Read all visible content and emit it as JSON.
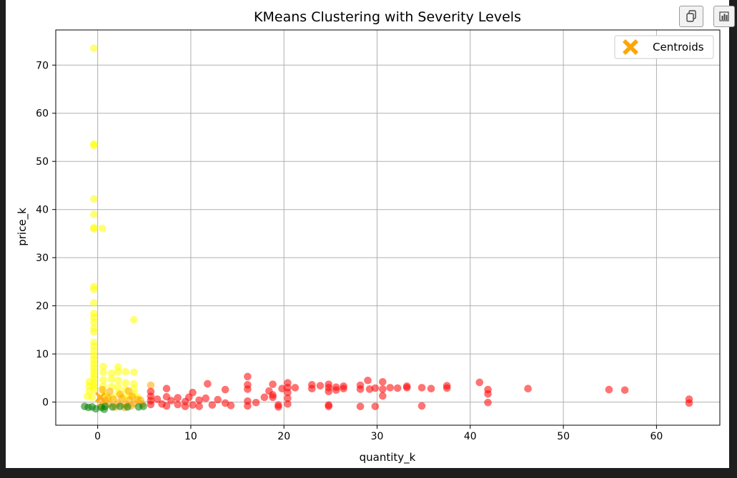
{
  "toolbar": {
    "copy_icon": "copy-icon",
    "chart_icon": "bar-chart-icon"
  },
  "colors": {
    "background": "#1e1e1e",
    "red": "#ff0000",
    "yellow": "#ffff00",
    "orange": "#ffa500",
    "green": "#008000",
    "grid": "#b0b0b0"
  },
  "chart_data": {
    "type": "scatter",
    "title": "KMeans Clustering with Severity Levels",
    "xlabel": "quantity_k",
    "ylabel": "price_k",
    "xlim": [
      -4.5,
      66.8
    ],
    "ylim": [
      -4.8,
      77.3
    ],
    "xticks": [
      0,
      10,
      20,
      30,
      40,
      50,
      60
    ],
    "yticks": [
      0,
      10,
      20,
      30,
      40,
      50,
      60,
      70
    ],
    "grid": true,
    "legend": {
      "placement": "top-right",
      "entries": [
        {
          "label": "Centroids",
          "color": "#ffa500",
          "marker": "X"
        }
      ]
    },
    "series": [
      {
        "color": "#ffff00",
        "points": [
          [
            -0.4,
            73.5
          ],
          [
            -0.4,
            53.6
          ],
          [
            -0.4,
            53.3
          ],
          [
            -0.4,
            42.2
          ],
          [
            -0.4,
            39.0
          ],
          [
            -0.4,
            36.2
          ],
          [
            -0.4,
            36.0
          ],
          [
            0.5,
            36.1
          ],
          [
            3.9,
            17.1
          ],
          [
            -0.4,
            24.0
          ],
          [
            -0.4,
            23.4
          ],
          [
            -0.4,
            20.6
          ],
          [
            -0.4,
            18.4
          ],
          [
            -0.4,
            17.6
          ],
          [
            -0.4,
            16.6
          ],
          [
            -0.4,
            15.4
          ],
          [
            -0.4,
            14.6
          ],
          [
            -0.4,
            12.4
          ],
          [
            -0.4,
            11.6
          ],
          [
            -0.4,
            10.6
          ],
          [
            -0.4,
            9.6
          ],
          [
            -0.4,
            8.8
          ],
          [
            -0.4,
            7.9
          ],
          [
            -0.4,
            7.1
          ],
          [
            -0.4,
            6.3
          ],
          [
            -0.4,
            5.6
          ],
          [
            -0.4,
            4.8
          ],
          [
            -0.4,
            4.0
          ],
          [
            -0.4,
            3.3
          ],
          [
            -0.4,
            2.6
          ],
          [
            -0.9,
            4.2
          ],
          [
            -0.9,
            3.3
          ],
          [
            -0.9,
            2.3
          ],
          [
            -1.1,
            1.2
          ],
          [
            -0.6,
            1.0
          ],
          [
            0.6,
            7.4
          ],
          [
            0.6,
            6.2
          ],
          [
            0.6,
            4.6
          ],
          [
            0.6,
            3.3
          ],
          [
            0.6,
            2.0
          ],
          [
            1.5,
            6.0
          ],
          [
            1.5,
            4.8
          ],
          [
            1.5,
            3.2
          ],
          [
            2.2,
            7.3
          ],
          [
            2.2,
            6.3
          ],
          [
            2.2,
            4.5
          ],
          [
            2.2,
            3.1
          ],
          [
            2.2,
            2.0
          ],
          [
            3.0,
            6.3
          ],
          [
            3.0,
            4.0
          ],
          [
            3.0,
            2.6
          ],
          [
            3.9,
            6.2
          ],
          [
            3.9,
            3.8
          ],
          [
            3.9,
            2.8
          ],
          [
            3.9,
            1.7
          ],
          [
            1.0,
            1.2
          ],
          [
            1.6,
            1.0
          ],
          [
            2.8,
            1.0
          ],
          [
            3.4,
            1.3
          ],
          [
            4.3,
            1.0
          ]
        ]
      },
      {
        "color": "#ffa500",
        "points": [
          [
            0.3,
            0.5
          ],
          [
            0.8,
            0.3
          ],
          [
            1.2,
            -0.4
          ],
          [
            1.7,
            0.6
          ],
          [
            2.2,
            -0.2
          ],
          [
            2.6,
            0.8
          ],
          [
            3.0,
            -0.4
          ],
          [
            3.4,
            0.4
          ],
          [
            3.9,
            -0.3
          ],
          [
            4.3,
            0.5
          ],
          [
            5.7,
            3.5
          ],
          [
            0.5,
            2.6
          ],
          [
            1.3,
            2.2
          ],
          [
            3.3,
            2.3
          ],
          [
            4.6,
            0.4
          ],
          [
            1.9,
            -1.0
          ],
          [
            2.9,
            -1.1
          ],
          [
            3.6,
            -0.8
          ],
          [
            0.4,
            -0.8
          ],
          [
            1.1,
            0.9
          ],
          [
            2.4,
            1.6
          ],
          [
            3.7,
            1.2
          ],
          [
            4.8,
            -0.4
          ]
        ]
      },
      {
        "color": "#008000",
        "points": [
          [
            -1.4,
            -0.9
          ],
          [
            -1.0,
            -1.1
          ],
          [
            -0.6,
            -1.0
          ],
          [
            -0.2,
            -1.4
          ],
          [
            0.4,
            -1.1
          ],
          [
            0.8,
            -0.9
          ],
          [
            1.6,
            -1.0
          ],
          [
            2.4,
            -0.9
          ],
          [
            3.2,
            -1.0
          ],
          [
            4.4,
            -1.0
          ],
          [
            4.9,
            -0.9
          ],
          [
            0.7,
            -1.5
          ]
        ]
      },
      {
        "color": "#ff0000",
        "points": [
          [
            5.7,
            2.2
          ],
          [
            5.7,
            1.2
          ],
          [
            5.7,
            0.3
          ],
          [
            5.7,
            -0.5
          ],
          [
            6.4,
            0.6
          ],
          [
            6.9,
            -0.4
          ],
          [
            7.4,
            1.1
          ],
          [
            7.4,
            2.8
          ],
          [
            7.4,
            -0.8
          ],
          [
            7.9,
            0.3
          ],
          [
            8.6,
            0.9
          ],
          [
            8.6,
            -0.5
          ],
          [
            9.4,
            0.1
          ],
          [
            9.4,
            -0.9
          ],
          [
            9.8,
            1.0
          ],
          [
            10.2,
            2.0
          ],
          [
            10.2,
            -0.6
          ],
          [
            10.9,
            0.4
          ],
          [
            10.9,
            -0.9
          ],
          [
            11.6,
            0.8
          ],
          [
            11.8,
            3.8
          ],
          [
            12.3,
            -0.6
          ],
          [
            12.9,
            0.5
          ],
          [
            13.7,
            2.6
          ],
          [
            13.7,
            -0.2
          ],
          [
            14.3,
            -0.7
          ],
          [
            16.1,
            5.3
          ],
          [
            16.1,
            3.6
          ],
          [
            16.1,
            2.7
          ],
          [
            16.1,
            0.2
          ],
          [
            16.1,
            -0.8
          ],
          [
            17.0,
            -0.1
          ],
          [
            17.9,
            1.0
          ],
          [
            18.4,
            2.3
          ],
          [
            18.8,
            3.7
          ],
          [
            18.8,
            1.5
          ],
          [
            18.8,
            1.0
          ],
          [
            19.4,
            -0.6
          ],
          [
            19.4,
            -1.0
          ],
          [
            19.8,
            2.8
          ],
          [
            20.4,
            4.0
          ],
          [
            20.4,
            3.0
          ],
          [
            20.4,
            2.0
          ],
          [
            20.4,
            0.8
          ],
          [
            20.4,
            -0.4
          ],
          [
            21.2,
            3.0
          ],
          [
            23.0,
            3.6
          ],
          [
            23.0,
            2.8
          ],
          [
            23.9,
            3.4
          ],
          [
            24.8,
            3.7
          ],
          [
            24.8,
            3.0
          ],
          [
            24.8,
            2.2
          ],
          [
            24.8,
            -0.6
          ],
          [
            24.8,
            -0.9
          ],
          [
            25.6,
            3.1
          ],
          [
            25.6,
            2.5
          ],
          [
            26.4,
            3.3
          ],
          [
            26.4,
            2.8
          ],
          [
            28.2,
            3.5
          ],
          [
            28.2,
            2.7
          ],
          [
            28.2,
            -0.9
          ],
          [
            29.0,
            4.5
          ],
          [
            29.2,
            2.7
          ],
          [
            29.8,
            2.9
          ],
          [
            29.8,
            -0.9
          ],
          [
            30.6,
            4.2
          ],
          [
            30.6,
            2.7
          ],
          [
            30.6,
            1.3
          ],
          [
            31.4,
            3.0
          ],
          [
            32.2,
            2.9
          ],
          [
            33.2,
            3.3
          ],
          [
            33.2,
            3.0
          ],
          [
            34.8,
            3.0
          ],
          [
            34.8,
            -0.8
          ],
          [
            35.8,
            2.8
          ],
          [
            37.5,
            3.4
          ],
          [
            37.5,
            2.9
          ],
          [
            41.0,
            4.1
          ],
          [
            41.9,
            2.6
          ],
          [
            41.9,
            1.7
          ],
          [
            41.9,
            -0.1
          ],
          [
            46.2,
            2.8
          ],
          [
            54.9,
            2.6
          ],
          [
            56.6,
            2.5
          ],
          [
            63.5,
            0.6
          ],
          [
            63.5,
            -0.2
          ]
        ]
      }
    ],
    "centroids": [
      [
        0.3,
        1.0
      ]
    ]
  }
}
